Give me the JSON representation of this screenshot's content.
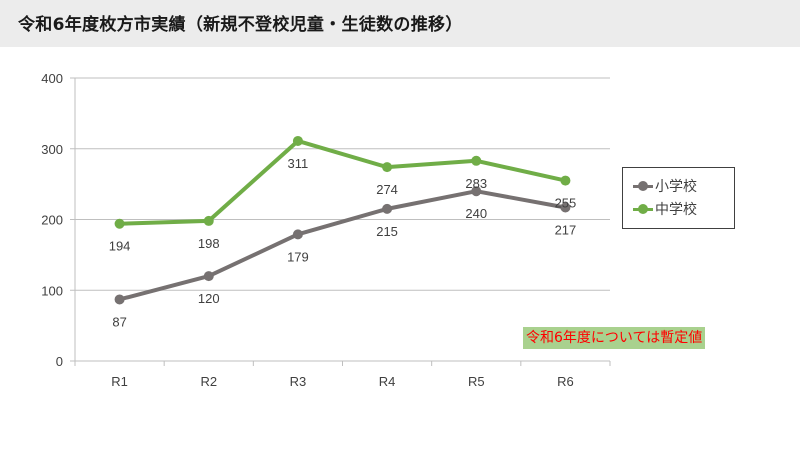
{
  "header": {
    "title": "令和6年度枚方市実績（新規不登校児童・生徒数の推移）"
  },
  "chart_data": {
    "type": "line",
    "title": "令和6年度枚方市実績（新規不登校児童・生徒数の推移）",
    "categories": [
      "R1",
      "R2",
      "R3",
      "R4",
      "R5",
      "R6"
    ],
    "series": [
      {
        "name": "小学校",
        "color": "#767171",
        "values": [
          87,
          120,
          179,
          215,
          240,
          217
        ]
      },
      {
        "name": "中学校",
        "color": "#70ad47",
        "values": [
          194,
          198,
          311,
          274,
          283,
          255
        ]
      }
    ],
    "xlabel": "",
    "ylabel": "",
    "ylim": [
      0,
      400
    ],
    "yticks": [
      0,
      100,
      200,
      300,
      400
    ],
    "grid": true,
    "legend_position": "right",
    "annotation": "令和6年度については暫定値"
  },
  "legend": {
    "items": [
      {
        "label": "小学校",
        "color": "#767171"
      },
      {
        "label": "中学校",
        "color": "#70ad47"
      }
    ]
  },
  "note": {
    "text": "令和6年度については暫定値",
    "text_color": "#ff0000",
    "bg_color": "#a9d18e"
  }
}
